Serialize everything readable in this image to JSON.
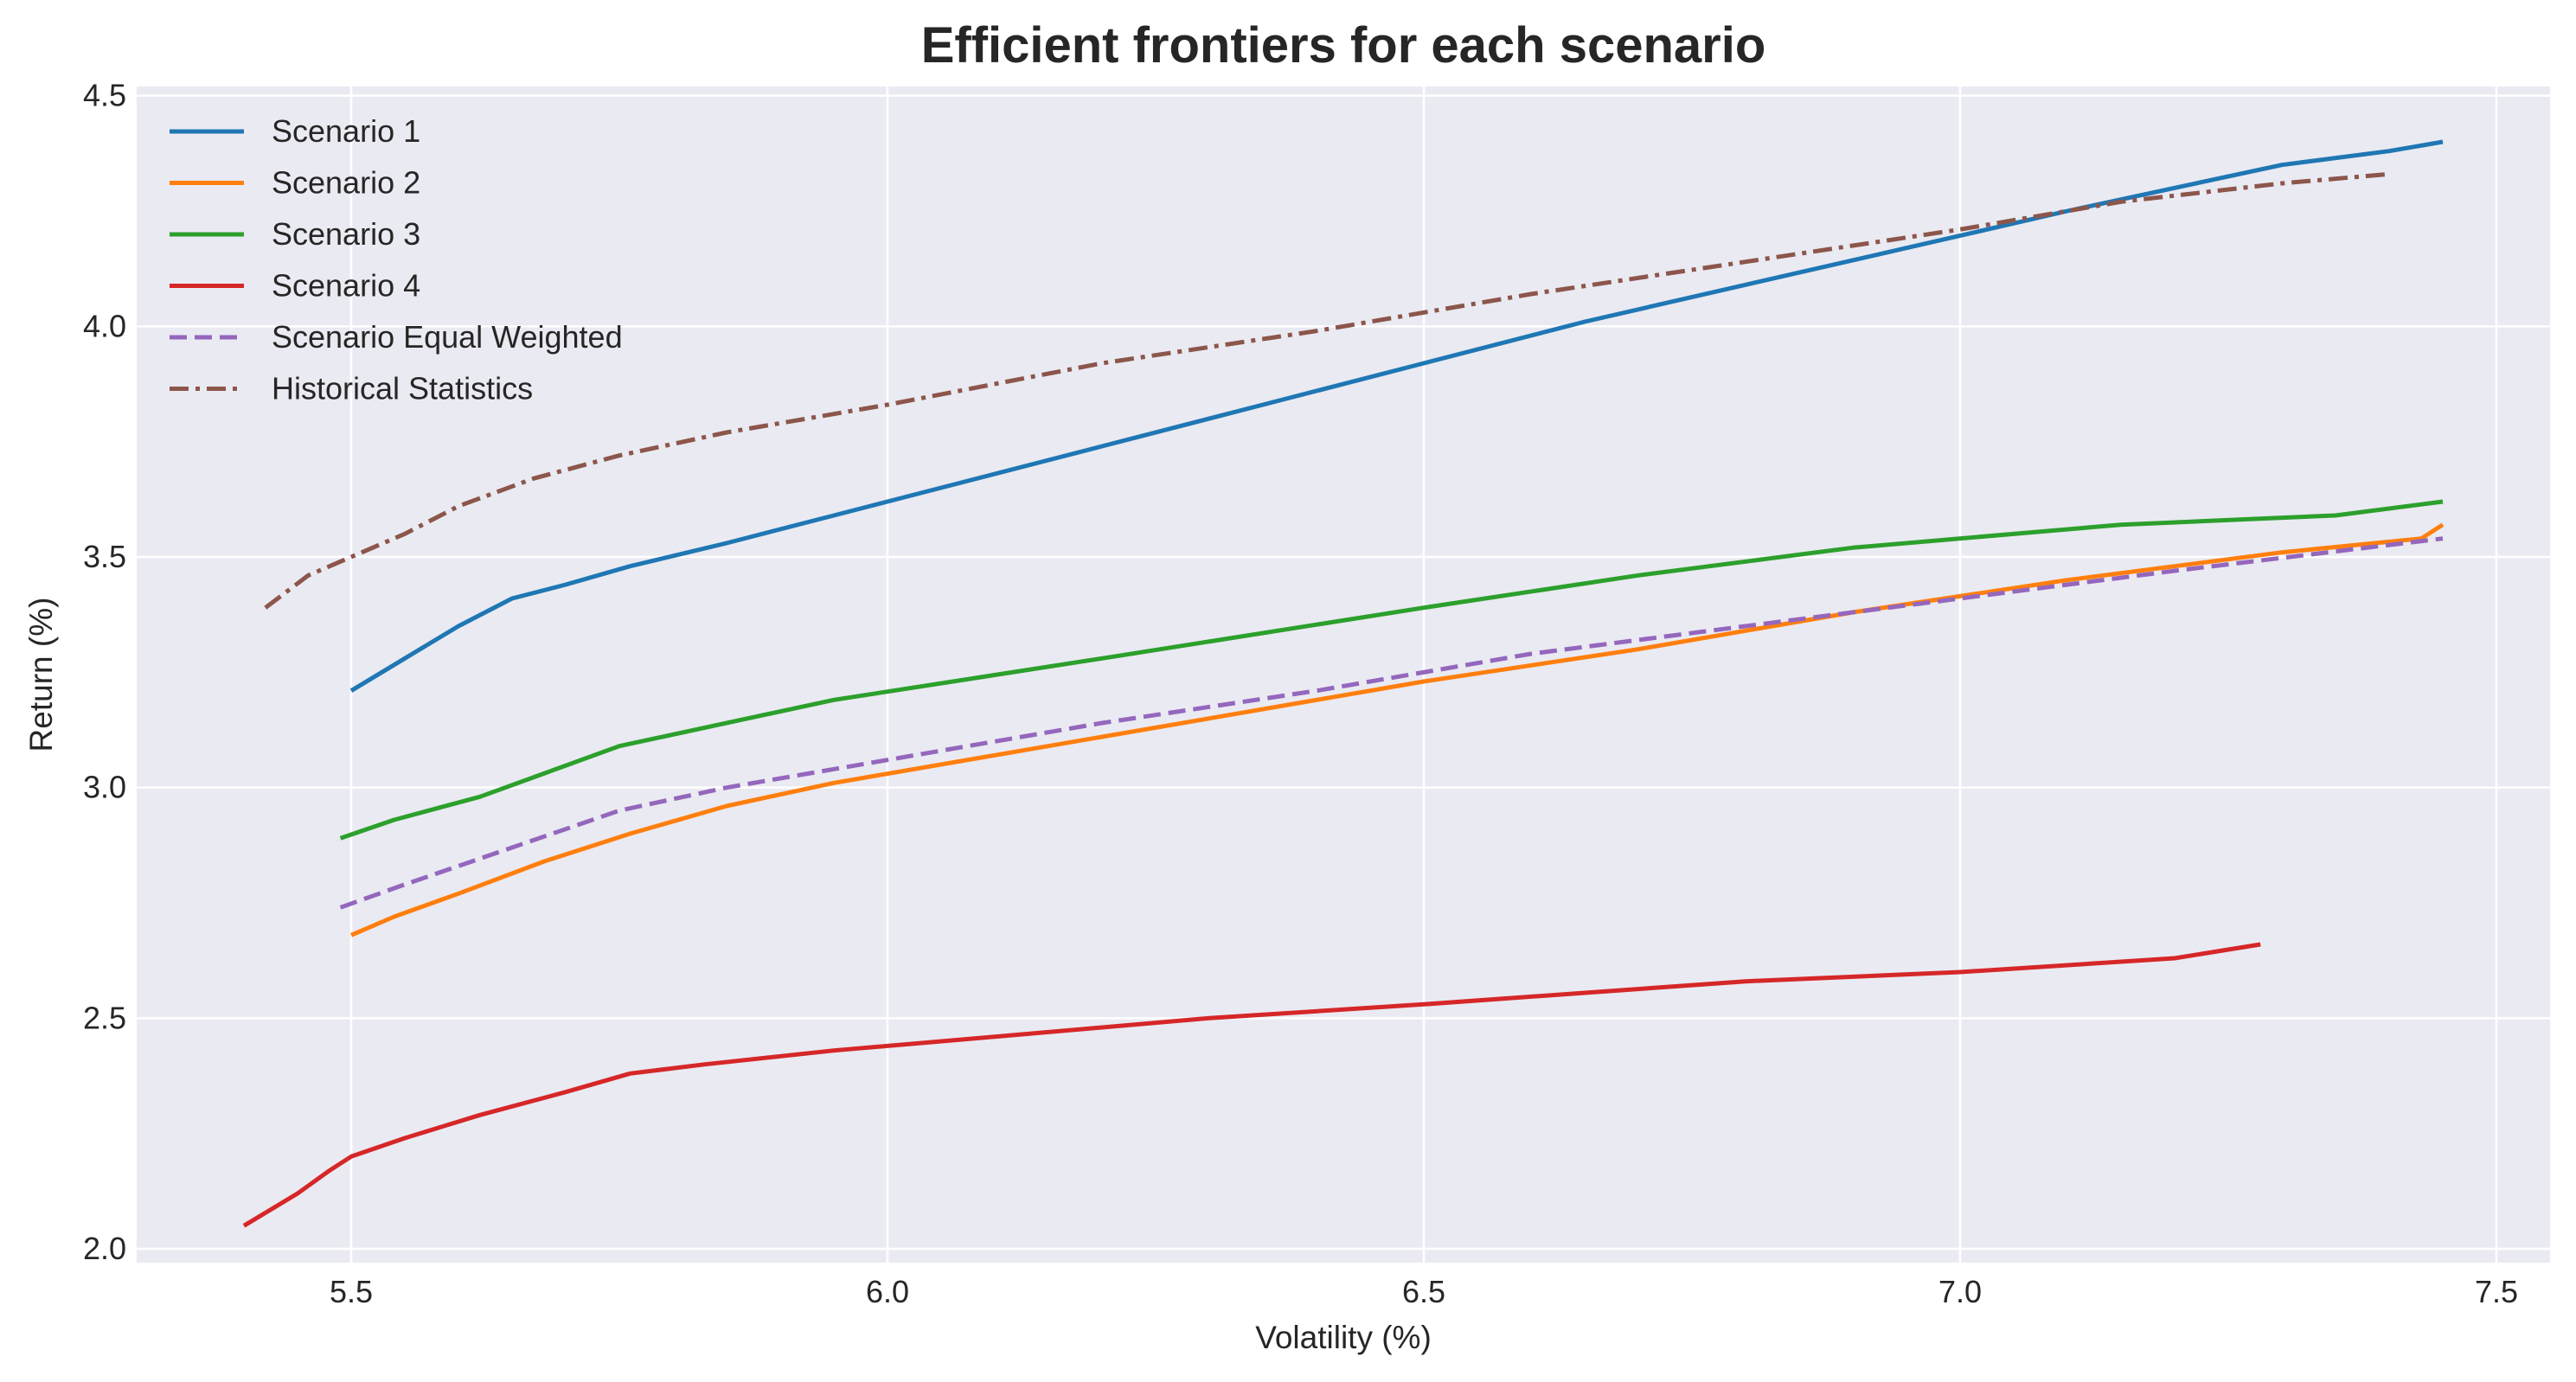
{
  "chart_data": {
    "type": "line",
    "title": "Efficient frontiers for each scenario",
    "xlabel": "Volatility (%)",
    "ylabel": "Return (%)",
    "xlim": [
      5.3,
      7.55
    ],
    "ylim": [
      1.97,
      4.52
    ],
    "xticks": [
      5.5,
      6.0,
      6.5,
      7.0,
      7.5
    ],
    "xtick_labels": [
      "5.5",
      "6.0",
      "6.5",
      "7.0",
      "7.5"
    ],
    "yticks": [
      2.0,
      2.5,
      3.0,
      3.5,
      4.0,
      4.5
    ],
    "ytick_labels": [
      "2.0",
      "2.5",
      "3.0",
      "3.5",
      "4.0",
      "4.5"
    ],
    "grid": true,
    "legend_position": "top-left",
    "background_color": "#eaeaf2",
    "grid_color": "#ffffff",
    "series": [
      {
        "name": "Scenario 1",
        "color": "#1f77b4",
        "dash": "solid",
        "x": [
          5.5,
          5.55,
          5.6,
          5.65,
          5.7,
          5.76,
          5.85,
          5.95,
          6.05,
          6.2,
          6.35,
          6.5,
          6.65,
          6.8,
          6.95,
          7.1,
          7.2,
          7.3,
          7.4,
          7.45
        ],
        "y": [
          3.21,
          3.28,
          3.35,
          3.41,
          3.44,
          3.48,
          3.53,
          3.59,
          3.65,
          3.74,
          3.83,
          3.92,
          4.01,
          4.09,
          4.17,
          4.25,
          4.3,
          4.35,
          4.38,
          4.4
        ]
      },
      {
        "name": "Scenario 2",
        "color": "#ff7f0e",
        "dash": "solid",
        "x": [
          5.5,
          5.54,
          5.6,
          5.68,
          5.76,
          5.85,
          5.95,
          6.1,
          6.3,
          6.5,
          6.7,
          6.9,
          7.1,
          7.3,
          7.43,
          7.45
        ],
        "y": [
          2.68,
          2.72,
          2.77,
          2.84,
          2.9,
          2.96,
          3.01,
          3.07,
          3.15,
          3.23,
          3.3,
          3.38,
          3.45,
          3.51,
          3.54,
          3.57
        ]
      },
      {
        "name": "Scenario 3",
        "color": "#2ca02c",
        "dash": "solid",
        "x": [
          5.49,
          5.54,
          5.62,
          5.75,
          5.95,
          6.2,
          6.5,
          6.7,
          6.9,
          7.15,
          7.35,
          7.45
        ],
        "y": [
          2.89,
          2.93,
          2.98,
          3.09,
          3.19,
          3.28,
          3.39,
          3.46,
          3.52,
          3.57,
          3.59,
          3.62
        ]
      },
      {
        "name": "Scenario 4",
        "color": "#d62728",
        "dash": "solid",
        "x": [
          5.4,
          5.45,
          5.48,
          5.5,
          5.55,
          5.62,
          5.7,
          5.76,
          5.83,
          5.95,
          6.1,
          6.3,
          6.5,
          6.8,
          7.0,
          7.2,
          7.28
        ],
        "y": [
          2.05,
          2.12,
          2.17,
          2.2,
          2.24,
          2.29,
          2.34,
          2.38,
          2.4,
          2.43,
          2.46,
          2.5,
          2.53,
          2.58,
          2.6,
          2.63,
          2.66
        ]
      },
      {
        "name": "Scenario Equal Weighted",
        "color": "#9467bd",
        "dash": "dashed",
        "x": [
          5.49,
          5.55,
          5.65,
          5.75,
          5.85,
          6.0,
          6.2,
          6.4,
          6.6,
          6.8,
          7.0,
          7.2,
          7.45
        ],
        "y": [
          2.74,
          2.79,
          2.87,
          2.95,
          3.0,
          3.06,
          3.14,
          3.21,
          3.29,
          3.35,
          3.41,
          3.47,
          3.54
        ]
      },
      {
        "name": "Historical Statistics",
        "color": "#8c564b",
        "dash": "dashdot",
        "x": [
          5.42,
          5.46,
          5.5,
          5.55,
          5.6,
          5.67,
          5.75,
          5.85,
          6.0,
          6.2,
          6.4,
          6.6,
          6.8,
          7.0,
          7.15,
          7.3,
          7.4
        ],
        "y": [
          3.39,
          3.46,
          3.5,
          3.55,
          3.61,
          3.67,
          3.72,
          3.77,
          3.83,
          3.92,
          3.99,
          4.07,
          4.14,
          4.21,
          4.27,
          4.31,
          4.33
        ]
      }
    ]
  }
}
